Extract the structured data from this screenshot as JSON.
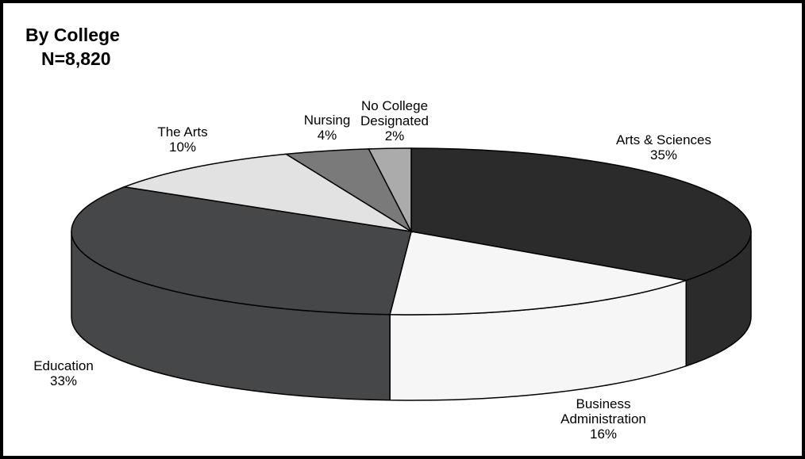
{
  "chart_data": {
    "type": "pie",
    "title": "By College",
    "subtitle": "N=8,820",
    "categories": [
      "Arts & Sciences",
      "Business Administration",
      "Education",
      "The Arts",
      "Nursing",
      "No College Designated"
    ],
    "values": [
      35,
      16,
      33,
      10,
      4,
      2
    ],
    "value_labels": [
      "35%",
      "16%",
      "33%",
      "10%",
      "4%",
      "2%"
    ],
    "colors": [
      "#2b2b2b",
      "#f6f6f6",
      "#464749",
      "#e2e2e2",
      "#7a7a7a",
      "#ababab"
    ]
  }
}
